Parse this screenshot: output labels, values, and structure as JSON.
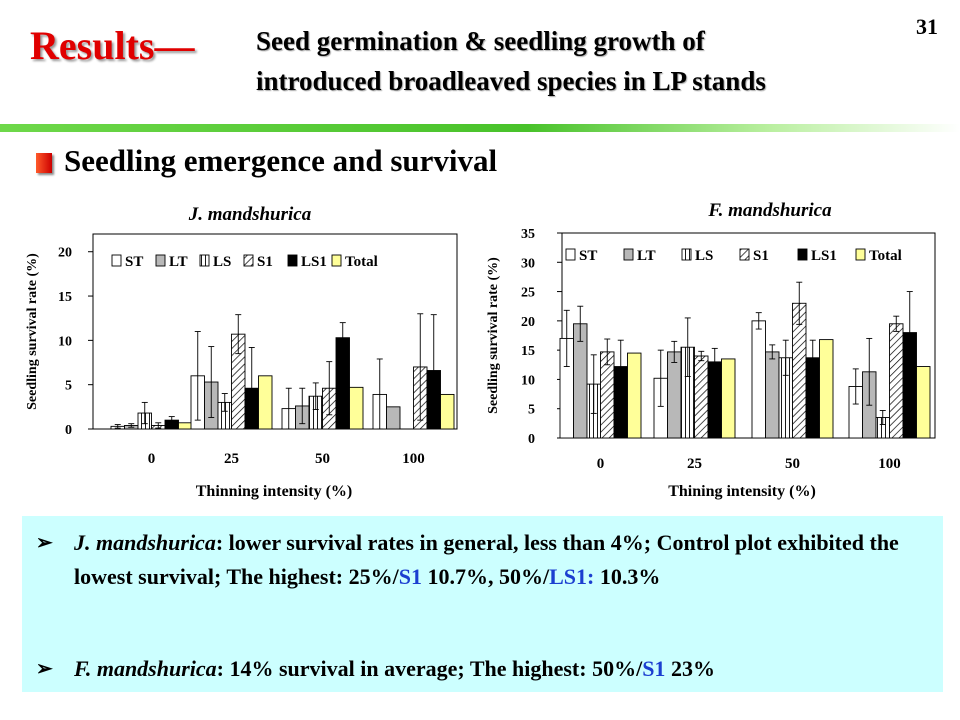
{
  "slide_number": "31",
  "title": {
    "main": "Results—",
    "sub_line1": "Seed germination & seedling growth of",
    "sub_line2": "introduced broadleaved species in LP stands"
  },
  "section_heading": "Seedling emergence and survival",
  "colors": {
    "title_red": "#e00000",
    "accent_green": "#48c22a",
    "summary_bg": "#ccffff",
    "highlight_blue": "#1c3fd0"
  },
  "chart_data": [
    {
      "type": "bar",
      "title": "J. mandshurica",
      "xlabel": "Thinning intensity (%)",
      "ylabel": "Seedling survival rate (%)",
      "categories": [
        "0",
        "25",
        "50",
        "100"
      ],
      "ylim": [
        0,
        22
      ],
      "yticks": [
        "0",
        "5",
        "10",
        "15",
        "20"
      ],
      "legend_position": "top",
      "series": [
        {
          "name": "ST",
          "values": [
            0.3,
            6.0,
            2.3,
            3.9
          ],
          "errors": [
            0.2,
            5.0,
            2.3,
            4.0
          ]
        },
        {
          "name": "LT",
          "values": [
            0.4,
            5.3,
            2.6,
            2.5
          ],
          "errors": [
            0.2,
            4.0,
            2.0,
            0.0
          ]
        },
        {
          "name": "LS",
          "values": [
            1.8,
            3.0,
            3.7,
            0.0
          ],
          "errors": [
            1.2,
            1.0,
            1.5,
            0.0
          ]
        },
        {
          "name": "S1",
          "values": [
            0.4,
            10.7,
            4.6,
            7.0
          ],
          "errors": [
            0.3,
            2.2,
            3.0,
            6.0
          ]
        },
        {
          "name": "LS1",
          "values": [
            1.0,
            4.6,
            10.3,
            6.6
          ],
          "errors": [
            0.4,
            4.6,
            1.7,
            6.3
          ]
        },
        {
          "name": "Total",
          "values": [
            0.7,
            6.0,
            4.7,
            3.9
          ],
          "errors": [
            0,
            0,
            0,
            0
          ]
        }
      ]
    },
    {
      "type": "bar",
      "title": "F. mandshurica",
      "xlabel": "Thining intensity (%)",
      "ylabel": "Seedling survival rate (%)",
      "categories": [
        "0",
        "25",
        "50",
        "100"
      ],
      "ylim": [
        0,
        35
      ],
      "yticks": [
        "0",
        "5",
        "10",
        "15",
        "20",
        "25",
        "30",
        "35"
      ],
      "legend_position": "top",
      "series": [
        {
          "name": "ST",
          "values": [
            17.0,
            10.2,
            20.0,
            8.8
          ],
          "errors": [
            4.8,
            4.8,
            1.4,
            3.0
          ]
        },
        {
          "name": "LT",
          "values": [
            19.5,
            14.7,
            14.7,
            11.3
          ],
          "errors": [
            3.0,
            1.8,
            1.2,
            5.7
          ]
        },
        {
          "name": "LS",
          "values": [
            9.2,
            15.5,
            13.7,
            3.5
          ],
          "errors": [
            5.0,
            5.0,
            3.0,
            1.2
          ]
        },
        {
          "name": "S1",
          "values": [
            14.7,
            14.0,
            23.0,
            19.5
          ],
          "errors": [
            2.2,
            0.8,
            3.6,
            1.3
          ]
        },
        {
          "name": "LS1",
          "values": [
            12.2,
            13.0,
            13.7,
            18.0
          ],
          "errors": [
            4.5,
            2.3,
            3.0,
            7.0
          ]
        },
        {
          "name": "Total",
          "values": [
            14.5,
            13.5,
            16.8,
            12.2
          ],
          "errors": [
            0,
            0,
            0,
            0
          ]
        }
      ]
    }
  ],
  "summary": {
    "item1": {
      "species": "J. mandshurica",
      "text_a": ": lower survival rates in general, less than 4%; Control plot exhibited the lowest survival; The highest: 25%/",
      "s1": "S1",
      "text_b": " 10.7%, 50%/",
      "ls1": "LS1:",
      "text_c": " 10.3%"
    },
    "item2": {
      "species": "F. mandshurica",
      "text_a": ": 14% survival in average; The highest: 50%/",
      "s1": "S1",
      "text_b": " 23%"
    }
  }
}
